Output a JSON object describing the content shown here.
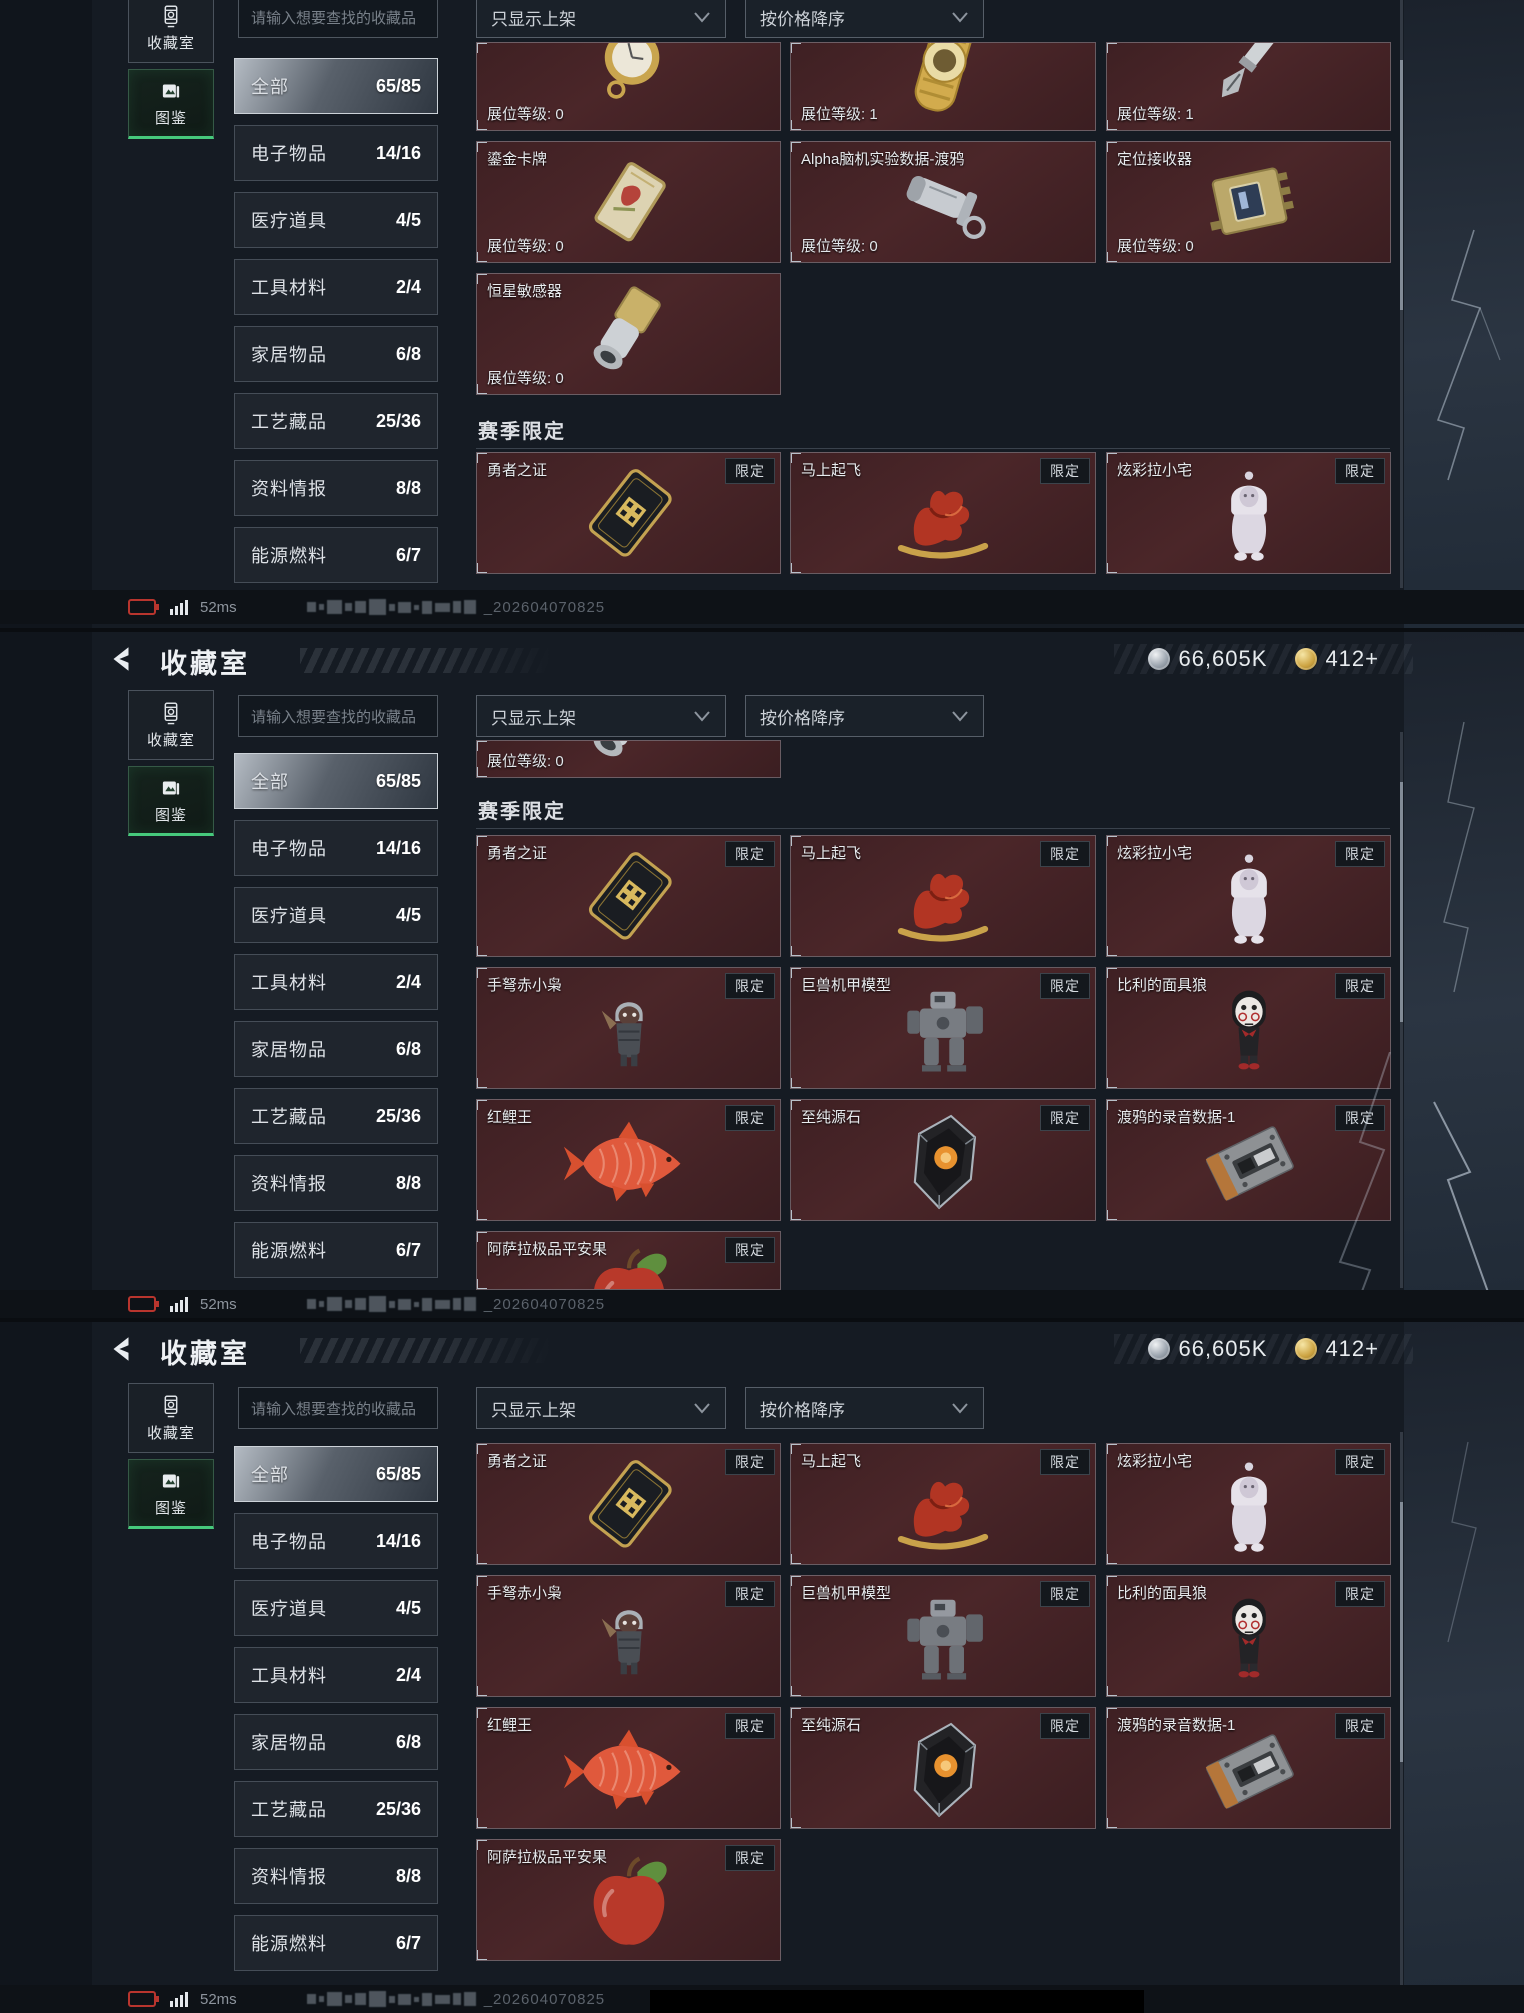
{
  "header": {
    "title": "收藏室"
  },
  "currency": {
    "silver_amount": "66,605K",
    "gold_amount": "412+"
  },
  "sidebar": {
    "collection_tab": "收藏室",
    "gallery_tab": "图鉴"
  },
  "search_placeholder": "请输入想要查找的收藏品",
  "filter_listed": "只显示上架",
  "filter_sort": "按价格降序",
  "categories": [
    {
      "label": "全部",
      "count": "65/85"
    },
    {
      "label": "电子物品",
      "count": "14/16"
    },
    {
      "label": "医疗道具",
      "count": "4/5"
    },
    {
      "label": "工具材料",
      "count": "2/4"
    },
    {
      "label": "家居物品",
      "count": "6/8"
    },
    {
      "label": "工艺藏品",
      "count": "25/36"
    },
    {
      "label": "资料情报",
      "count": "8/8"
    },
    {
      "label": "能源燃料",
      "count": "6/7"
    }
  ],
  "season_section_title": "赛季限定",
  "limited_badge": "限定",
  "stand_level_prefix": "展位等级:",
  "catalog": {
    "pocket_watch": {
      "title": "",
      "icon": "pocket-watch",
      "stand": "0"
    },
    "gold_watch": {
      "title": "",
      "icon": "gold-watch",
      "stand": "1"
    },
    "fountain_pen": {
      "title": "",
      "icon": "fountain-pen",
      "stand": "1"
    },
    "gilded_card": {
      "title": "鎏金卡牌",
      "icon": "gilded-card",
      "stand": "0"
    },
    "alpha_data": {
      "title": "Alpha脑机实验数据-渡鸦",
      "icon": "alpha-data",
      "stand": "0"
    },
    "locator_receiver": {
      "title": "定位接收器",
      "icon": "locator-receiver",
      "stand": "0"
    },
    "star_sensor": {
      "title": "恒星敏感器",
      "icon": "star-sensor",
      "stand": "0"
    },
    "star_sensor_fragment": {
      "title": "",
      "icon": "star-sensor",
      "stand": "0"
    },
    "brave_cert": {
      "title": "勇者之证",
      "icon": "brave-card",
      "limited": true
    },
    "rocking_horse": {
      "title": "马上起飞",
      "icon": "rocking-horse",
      "limited": true
    },
    "lala_doll": {
      "title": "炫彩拉小宅",
      "icon": "lala-doll",
      "limited": true
    },
    "crossbow_owl": {
      "title": "手弩赤小枭",
      "icon": "crossbow-owl",
      "limited": true
    },
    "mech_model": {
      "title": "巨兽机甲模型",
      "icon": "mech-model",
      "limited": true
    },
    "billy_mask": {
      "title": "比利的面具狼",
      "icon": "billy-mask",
      "limited": true
    },
    "red_koi": {
      "title": "红鲤王",
      "icon": "red-koi",
      "limited": true
    },
    "origin_stone": {
      "title": "至纯源石",
      "icon": "origin-stone",
      "limited": true
    },
    "raven_tape": {
      "title": "渡鸦的录音数据-1",
      "icon": "raven-tape",
      "limited": true
    },
    "peace_apple": {
      "title": "阿萨拉极品平安果",
      "icon": "peace-apple",
      "limited": true
    }
  },
  "status": {
    "ping": "52ms",
    "watermark": "_202604070825"
  },
  "panels": [
    {
      "show_header": false,
      "rows": [
        {
          "cards": [
            "pocket_watch",
            "gold_watch",
            "fountain_pen"
          ],
          "cut": "cut-top"
        },
        {
          "cards": [
            "gilded_card",
            "alpha_data",
            "locator_receiver"
          ]
        },
        {
          "cards": [
            "star_sensor"
          ]
        },
        {
          "season": true
        },
        {
          "cards": [
            "brave_cert",
            "rocking_horse",
            "lala_doll"
          ]
        }
      ]
    },
    {
      "show_header": true,
      "rows": [
        {
          "cards": [
            "star_sensor_fragment"
          ],
          "cut": "cut-frag"
        },
        {
          "season": true
        },
        {
          "cards": [
            "brave_cert",
            "rocking_horse",
            "lala_doll"
          ]
        },
        {
          "cards": [
            "crossbow_owl",
            "mech_model",
            "billy_mask"
          ]
        },
        {
          "cards": [
            "red_koi",
            "origin_stone",
            "raven_tape"
          ]
        },
        {
          "cards": [
            "peace_apple"
          ],
          "cut": "cut-bottom"
        }
      ]
    },
    {
      "show_header": true,
      "rows": [
        {
          "cards": [
            "brave_cert",
            "rocking_horse",
            "lala_doll"
          ]
        },
        {
          "cards": [
            "crossbow_owl",
            "mech_model",
            "billy_mask"
          ]
        },
        {
          "cards": [
            "red_koi",
            "origin_stone",
            "raven_tape"
          ]
        },
        {
          "cards": [
            "peace_apple"
          ]
        }
      ]
    }
  ]
}
